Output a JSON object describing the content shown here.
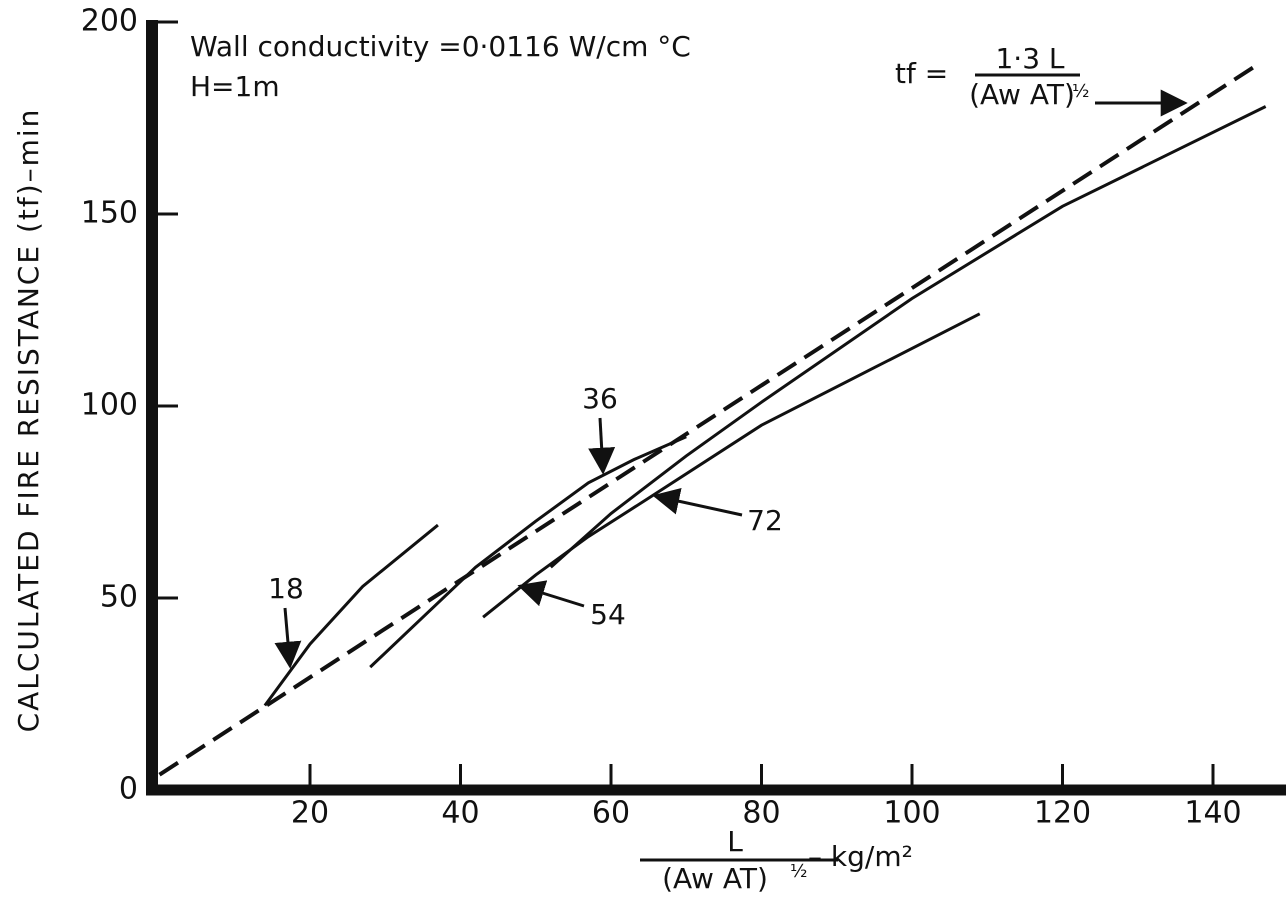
{
  "chart_data": {
    "type": "line",
    "annotations": [
      "Wall conductivity =0·0116 W/cm °C",
      "H=1m"
    ],
    "equation": {
      "lhs": "tf =",
      "numerator": "1·3 L",
      "denominator": "(Aw AT)",
      "exponent": "½"
    },
    "x_label": {
      "numerator": "L",
      "denominator": "(Aw AT)",
      "exponent": "½",
      "unit": "– kg/m²"
    },
    "y_label": "CALCULATED FIRE RESISTANCE (tf)–min",
    "xlim": [
      0,
      149
    ],
    "ylim": [
      0,
      200
    ],
    "xticks": [
      20,
      40,
      60,
      80,
      100,
      120,
      140
    ],
    "yticks": [
      0,
      50,
      100,
      150,
      200
    ],
    "series": [
      {
        "color": "#111",
        "dashed": true,
        "x": [
          0,
          146
        ],
        "values": [
          4,
          189
        ]
      },
      {
        "name": "18",
        "color": "#111",
        "x": [
          14,
          20,
          27,
          37
        ],
        "values": [
          22,
          38,
          53,
          69
        ]
      },
      {
        "name": "36",
        "color": "#111",
        "x": [
          28,
          35,
          42,
          50,
          57,
          63,
          70
        ],
        "values": [
          32,
          45,
          58,
          70,
          80,
          86,
          92
        ]
      },
      {
        "name": "54",
        "color": "#111",
        "x": [
          52,
          60,
          70,
          80,
          100,
          120,
          147
        ],
        "values": [
          58,
          72,
          87,
          101,
          128,
          152,
          178
        ]
      },
      {
        "name": "72",
        "color": "#111",
        "x": [
          43,
          50,
          57,
          65,
          80,
          95,
          109
        ],
        "values": [
          45,
          56,
          66,
          76,
          95,
          110,
          124
        ]
      }
    ]
  }
}
